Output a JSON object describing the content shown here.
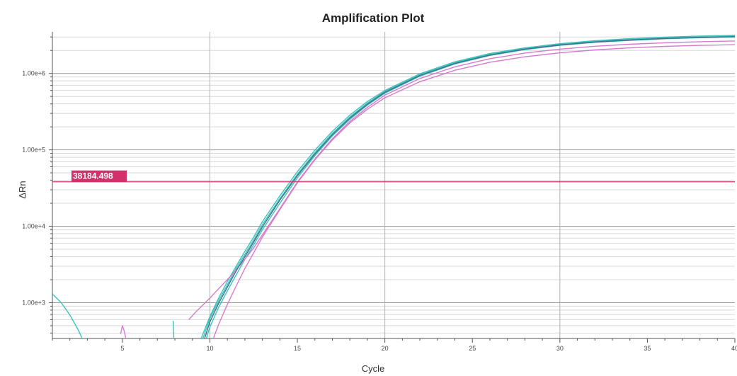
{
  "chart_data": {
    "type": "line",
    "title": "Amplification Plot",
    "xlabel": "Cycle",
    "ylabel": "ΔRn",
    "xlim": [
      1,
      40
    ],
    "ylim": [
      340,
      3500000
    ],
    "y_scale": "log",
    "grid": true,
    "legend": "none",
    "x_ticks": [
      5,
      10,
      15,
      20,
      25,
      30,
      35,
      40
    ],
    "x_tick_labels": [
      "5",
      "10",
      "15",
      "20",
      "25",
      "30",
      "35",
      "40"
    ],
    "y_ticks": [
      1000,
      10000,
      100000,
      1000000
    ],
    "y_tick_labels": [
      "1.00e+3",
      "1.00e+4",
      "1.00e+5",
      "1.00e+6"
    ],
    "threshold": {
      "value": 38184.498,
      "label": "38184.498",
      "color": "#d6336c"
    },
    "colors": {
      "teal": "#3cc3bc",
      "magenta": "#d67ad0",
      "dark": "#4a6a8a",
      "threshold": "#d6336c",
      "threshold_label_bg": "#d1306b",
      "major_grid": "#9a9a9a",
      "minor_grid": "#d8d8d8"
    },
    "series": [
      {
        "color": "#3cc3bc",
        "x": [
          9.6,
          10,
          10.5,
          11,
          11.5,
          12,
          12.5,
          13,
          14,
          15,
          16,
          17,
          18,
          19,
          20,
          22,
          24,
          26,
          28,
          30,
          32,
          34,
          36,
          38,
          40
        ],
        "y": [
          340,
          620,
          1060,
          1720,
          2800,
          4300,
          6600,
          10500,
          23000,
          48000,
          92000,
          165000,
          270000,
          410000,
          580000,
          960000,
          1380000,
          1780000,
          2120000,
          2400000,
          2620000,
          2780000,
          2910000,
          3000000,
          3070000
        ]
      },
      {
        "color": "#3cc3bc",
        "x": [
          9.5,
          10,
          10.5,
          11,
          11.5,
          12,
          12.5,
          13,
          14,
          15,
          16,
          17,
          18,
          19,
          20,
          22,
          24,
          26,
          28,
          30,
          32,
          34,
          36,
          38,
          40
        ],
        "y": [
          340,
          660,
          1150,
          1900,
          3000,
          4700,
          7200,
          11500,
          25000,
          52000,
          99000,
          175000,
          285000,
          430000,
          600000,
          990000,
          1420000,
          1820000,
          2160000,
          2450000,
          2680000,
          2850000,
          2990000,
          3080000,
          3150000
        ]
      },
      {
        "color": "#3cc3bc",
        "x": [
          9.8,
          10,
          10.5,
          11,
          11.5,
          12,
          12.5,
          13,
          14,
          15,
          16,
          17,
          18,
          19,
          20,
          22,
          24,
          26,
          28,
          30,
          32,
          34,
          36,
          38,
          40
        ],
        "y": [
          340,
          480,
          870,
          1430,
          2300,
          3700,
          5700,
          9000,
          20000,
          43000,
          84000,
          152000,
          250000,
          385000,
          550000,
          920000,
          1330000,
          1720000,
          2050000,
          2330000,
          2550000,
          2710000,
          2840000,
          2930000,
          3000000
        ]
      },
      {
        "color": "#d67ad0",
        "x": [
          8.8,
          9.2,
          9.6,
          10,
          10.5,
          11,
          11.5,
          12,
          12.5,
          13,
          14,
          15,
          16,
          17,
          18,
          19,
          20,
          22,
          24,
          26,
          28,
          30,
          32,
          34,
          36,
          38,
          40
        ],
        "y": [
          600,
          760,
          930,
          1150,
          1520,
          2000,
          2700,
          3700,
          5200,
          7700,
          17000,
          38000,
          76000,
          140000,
          235000,
          360000,
          520000,
          860000,
          1220000,
          1560000,
          1850000,
          2080000,
          2270000,
          2410000,
          2520000,
          2600000,
          2660000
        ]
      },
      {
        "color": "#d67ad0",
        "x": [
          10.2,
          10.5,
          11,
          11.5,
          12,
          12.5,
          13,
          14,
          15,
          16,
          17,
          18,
          19,
          20,
          22,
          24,
          26,
          28,
          30,
          32,
          34,
          36,
          38,
          40
        ],
        "y": [
          340,
          520,
          950,
          1650,
          2800,
          4500,
          7200,
          16500,
          37000,
          74000,
          135000,
          225000,
          340000,
          480000,
          780000,
          1100000,
          1400000,
          1650000,
          1860000,
          2030000,
          2160000,
          2260000,
          2330000,
          2380000
        ]
      },
      {
        "color": "#4a6a8a",
        "x": [
          9.7,
          10,
          10.5,
          11,
          11.5,
          12,
          12.5,
          13,
          14,
          15,
          16,
          17,
          18,
          19,
          20,
          22,
          24,
          26,
          28,
          30,
          32,
          34,
          36,
          38,
          40
        ],
        "y": [
          340,
          560,
          980,
          1600,
          2600,
          4000,
          6200,
          9800,
          22000,
          46000,
          88000,
          158000,
          260000,
          395000,
          565000,
          940000,
          1350000,
          1740000,
          2080000,
          2360000,
          2580000,
          2740000,
          2870000,
          2960000,
          3030000
        ]
      },
      {
        "color": "#3cc3bc",
        "x": [
          1,
          1.5,
          2,
          2.5,
          2.7
        ],
        "y": [
          1300,
          1000,
          690,
          430,
          340
        ]
      },
      {
        "color": "#3cc3bc",
        "x": [
          7.9,
          7.92,
          7.94
        ],
        "y": [
          580,
          450,
          340
        ]
      },
      {
        "color": "#d67ad0",
        "x": [
          4.9,
          5.0,
          5.1,
          5.2
        ],
        "y": [
          390,
          500,
          430,
          340
        ]
      }
    ]
  }
}
